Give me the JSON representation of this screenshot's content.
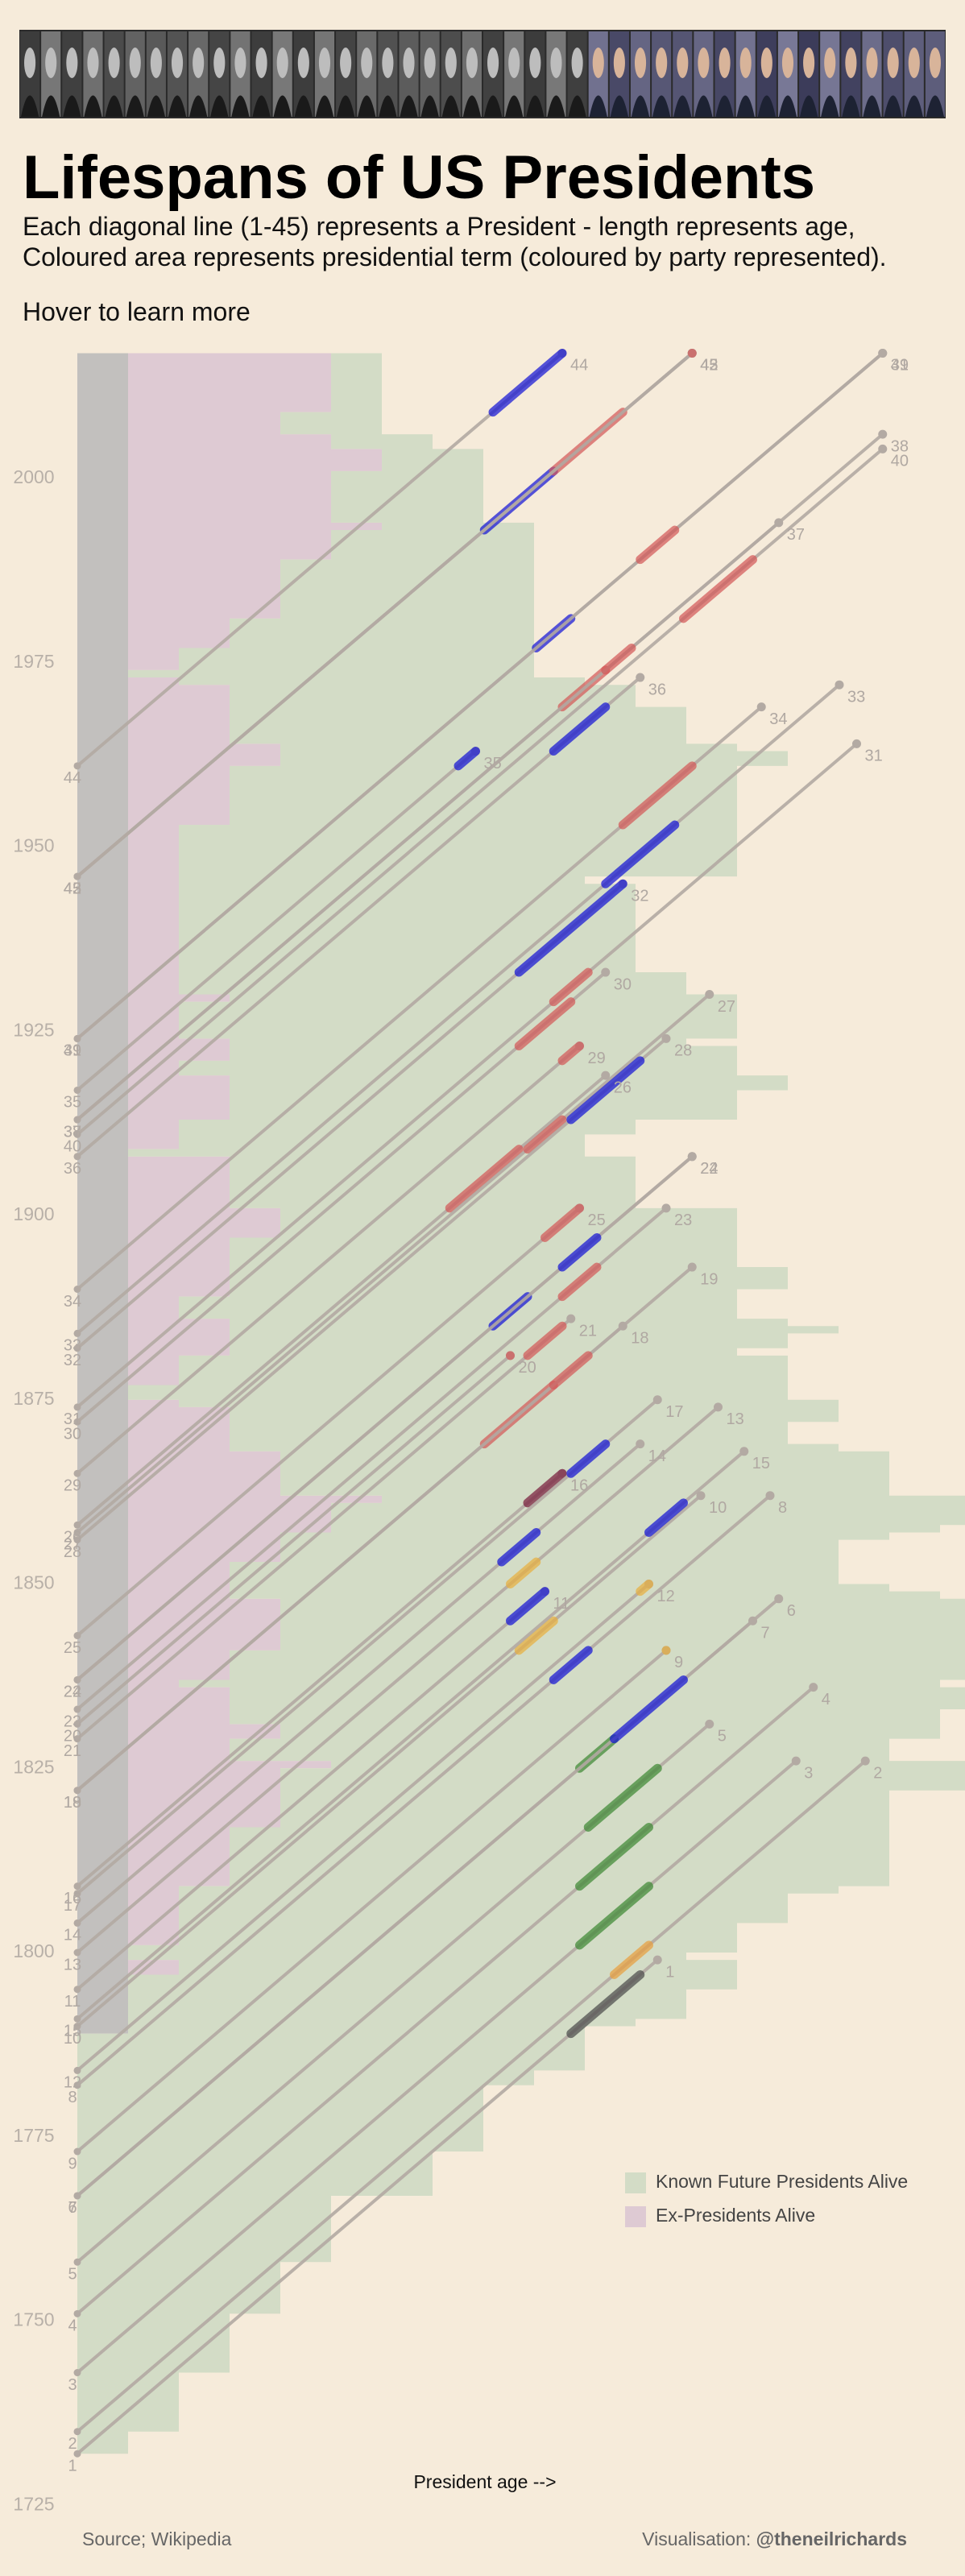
{
  "chart_data": {
    "type": "lifespan",
    "title": "Lifespans of US Presidents",
    "subtitle": [
      "Each diagonal line (1-45) represents a President - length represents age,",
      "Coloured area represents presidential term (coloured by party represented)."
    ],
    "instruction": "Hover to learn more",
    "x_label": "President age -->",
    "source": "Source; Wikipedia",
    "credit_prefix": "Visualisation: ",
    "credit_handle": "@theneilrichards",
    "ylim": [
      1725,
      2017
    ],
    "yticks": [
      1725,
      1750,
      1775,
      1800,
      1825,
      1850,
      1875,
      1900,
      1925,
      1950,
      1975,
      2000
    ],
    "line_color": "#b3aaa3",
    "current_color": "#c2c0be",
    "areas": [
      {
        "name": "Known Future Presidents Alive",
        "color": "#d3dcc6"
      },
      {
        "name": "Ex-Presidents Alive",
        "color": "#decad3"
      }
    ],
    "presidents": [
      {
        "number": 1,
        "birth": 1732,
        "death": 1799,
        "term_start": 1789,
        "term_end": 1797,
        "color": "#4d4d4d"
      },
      {
        "number": 2,
        "birth": 1735,
        "death": 1826,
        "term_start": 1797,
        "term_end": 1801,
        "color": "#e8a040"
      },
      {
        "number": 3,
        "birth": 1743,
        "death": 1826,
        "term_start": 1801,
        "term_end": 1809,
        "color": "#3f8a36"
      },
      {
        "number": 4,
        "birth": 1751,
        "death": 1836,
        "term_start": 1809,
        "term_end": 1817,
        "color": "#3f8a36"
      },
      {
        "number": 5,
        "birth": 1758,
        "death": 1831,
        "term_start": 1817,
        "term_end": 1825,
        "color": "#3f8a36"
      },
      {
        "number": 6,
        "birth": 1767,
        "death": 1848,
        "term_start": 1825,
        "term_end": 1829,
        "color": "#3f8a36"
      },
      {
        "number": 7,
        "birth": 1767,
        "death": 1845,
        "term_start": 1829,
        "term_end": 1837,
        "color": "#1616d6"
      },
      {
        "number": 8,
        "birth": 1782,
        "death": 1862,
        "term_start": 1837,
        "term_end": 1841,
        "color": "#1616d6"
      },
      {
        "number": 9,
        "birth": 1773,
        "death": 1841,
        "term_start": 1841,
        "term_end": 1841,
        "color": "#e8b040"
      },
      {
        "number": 10,
        "birth": 1790,
        "death": 1862,
        "term_start": 1841,
        "term_end": 1845,
        "color": "#e8b040"
      },
      {
        "number": 11,
        "birth": 1795,
        "death": 1849,
        "term_start": 1845,
        "term_end": 1849,
        "color": "#1616d6"
      },
      {
        "number": 12,
        "birth": 1784,
        "death": 1850,
        "term_start": 1849,
        "term_end": 1850,
        "color": "#e8b040"
      },
      {
        "number": 13,
        "birth": 1800,
        "death": 1874,
        "term_start": 1850,
        "term_end": 1853,
        "color": "#e8b040"
      },
      {
        "number": 14,
        "birth": 1804,
        "death": 1869,
        "term_start": 1853,
        "term_end": 1857,
        "color": "#1616d6"
      },
      {
        "number": 15,
        "birth": 1791,
        "death": 1868,
        "term_start": 1857,
        "term_end": 1861,
        "color": "#1616d6"
      },
      {
        "number": 16,
        "birth": 1809,
        "death": 1865,
        "term_start": 1861,
        "term_end": 1865,
        "color": "#7a1f3e"
      },
      {
        "number": 17,
        "birth": 1808,
        "death": 1875,
        "term_start": 1865,
        "term_end": 1869,
        "color": "#1616d6"
      },
      {
        "number": 18,
        "birth": 1822,
        "death": 1885,
        "term_start": 1869,
        "term_end": 1877,
        "color": "#d45a5a"
      },
      {
        "number": 19,
        "birth": 1822,
        "death": 1893,
        "term_start": 1877,
        "term_end": 1881,
        "color": "#d45a5a"
      },
      {
        "number": 20,
        "birth": 1831,
        "death": 1881,
        "term_start": 1881,
        "term_end": 1881,
        "color": "#d45a5a"
      },
      {
        "number": 21,
        "birth": 1829,
        "death": 1886,
        "term_start": 1881,
        "term_end": 1885,
        "color": "#d45a5a"
      },
      {
        "number": 22,
        "birth": 1837,
        "death": 1908,
        "term_start": 1885,
        "term_end": 1889,
        "color": "#1616d6"
      },
      {
        "number": 23,
        "birth": 1833,
        "death": 1901,
        "term_start": 1889,
        "term_end": 1893,
        "color": "#d45a5a"
      },
      {
        "number": 24,
        "birth": 1837,
        "death": 1908,
        "term_start": 1893,
        "term_end": 1897,
        "color": "#1616d6"
      },
      {
        "number": 25,
        "birth": 1843,
        "death": 1901,
        "term_start": 1897,
        "term_end": 1901,
        "color": "#d45a5a"
      },
      {
        "number": 26,
        "birth": 1858,
        "death": 1919,
        "term_start": 1901,
        "term_end": 1909,
        "color": "#d45a5a"
      },
      {
        "number": 27,
        "birth": 1857,
        "death": 1930,
        "term_start": 1909,
        "term_end": 1913,
        "color": "#d45a5a"
      },
      {
        "number": 28,
        "birth": 1856,
        "death": 1924,
        "term_start": 1913,
        "term_end": 1921,
        "color": "#1616d6"
      },
      {
        "number": 29,
        "birth": 1865,
        "death": 1923,
        "term_start": 1921,
        "term_end": 1923,
        "color": "#d45a5a"
      },
      {
        "number": 30,
        "birth": 1872,
        "death": 1933,
        "term_start": 1923,
        "term_end": 1929,
        "color": "#d45a5a"
      },
      {
        "number": 31,
        "birth": 1874,
        "death": 1964,
        "term_start": 1929,
        "term_end": 1933,
        "color": "#d45a5a"
      },
      {
        "number": 32,
        "birth": 1882,
        "death": 1945,
        "term_start": 1933,
        "term_end": 1945,
        "color": "#1616d6"
      },
      {
        "number": 33,
        "birth": 1884,
        "death": 1972,
        "term_start": 1945,
        "term_end": 1953,
        "color": "#1616d6"
      },
      {
        "number": 34,
        "birth": 1890,
        "death": 1969,
        "term_start": 1953,
        "term_end": 1961,
        "color": "#d45a5a"
      },
      {
        "number": 35,
        "birth": 1917,
        "death": 1963,
        "term_start": 1961,
        "term_end": 1963,
        "color": "#1616d6"
      },
      {
        "number": 36,
        "birth": 1908,
        "death": 1973,
        "term_start": 1963,
        "term_end": 1969,
        "color": "#1616d6"
      },
      {
        "number": 37,
        "birth": 1913,
        "death": 1994,
        "term_start": 1969,
        "term_end": 1974,
        "color": "#d45a5a"
      },
      {
        "number": 38,
        "birth": 1913,
        "death": 2006,
        "term_start": 1974,
        "term_end": 1977,
        "color": "#d45a5a"
      },
      {
        "number": 39,
        "birth": 1924,
        "death": null,
        "term_start": 1977,
        "term_end": 1981,
        "color": "#1616d6"
      },
      {
        "number": 40,
        "birth": 1911,
        "death": 2004,
        "term_start": 1981,
        "term_end": 1989,
        "color": "#d45a5a"
      },
      {
        "number": 41,
        "birth": 1924,
        "death": null,
        "term_start": 1989,
        "term_end": 1993,
        "color": "#d45a5a"
      },
      {
        "number": 42,
        "birth": 1946,
        "death": null,
        "term_start": 1993,
        "term_end": 2001,
        "color": "#1616d6"
      },
      {
        "number": 43,
        "birth": 1946,
        "death": null,
        "term_start": 2001,
        "term_end": 2009,
        "color": "#d45a5a"
      },
      {
        "number": 44,
        "birth": 1961,
        "death": null,
        "term_start": 2009,
        "term_end": 2017,
        "color": "#1616d6"
      },
      {
        "number": 45,
        "birth": 1946,
        "death": null,
        "term_start": 2017,
        "term_end": null,
        "color": "#d45a5a"
      }
    ]
  }
}
